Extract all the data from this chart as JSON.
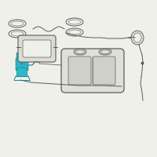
{
  "bg_color": "#f0f0eb",
  "line_color": "#5a5a5a",
  "highlight_color": "#2bbac8",
  "highlight_dark": "#1a8fa0",
  "highlight_fill": "#3ac5d5",
  "tank_fill": "#e0e0da",
  "tank_inner_fill": "#d0d0ca",
  "strap_fill": "#dcdcd5",
  "figsize": [
    2.0,
    2.0
  ],
  "dpi": 100
}
